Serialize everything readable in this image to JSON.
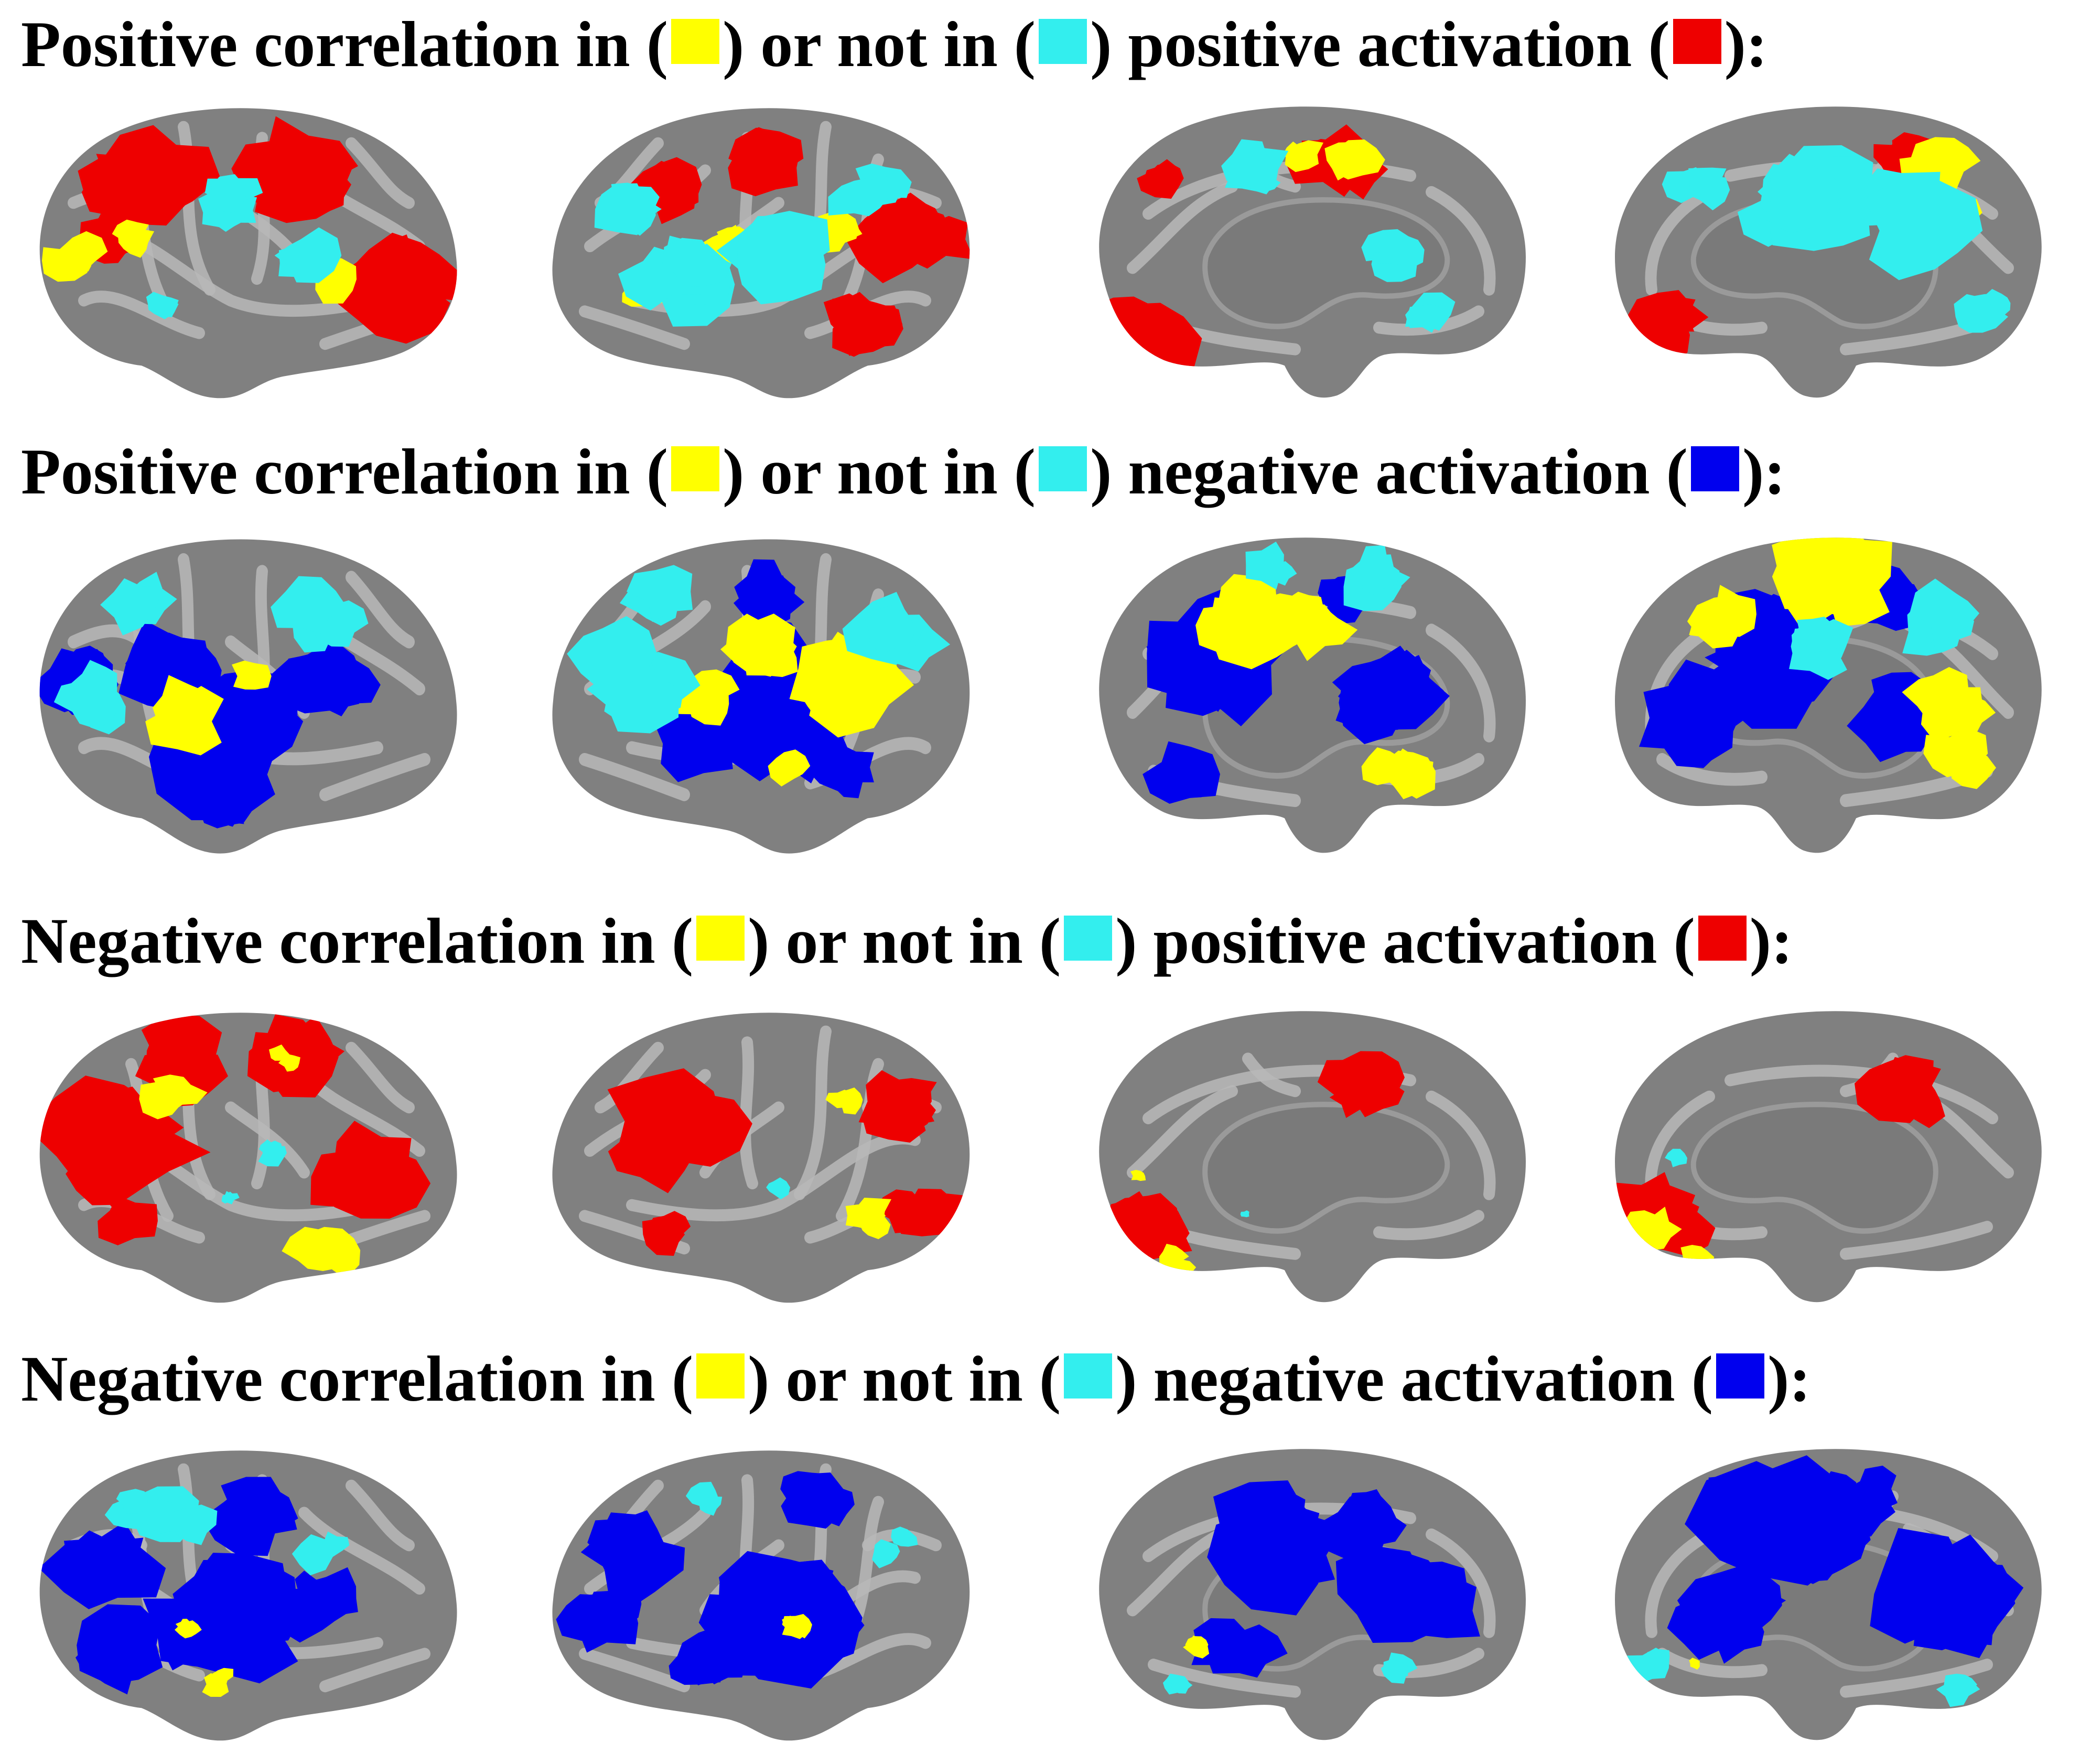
{
  "colors": {
    "yellow": "#ffff00",
    "cyan": "#33eeee",
    "red": "#ee0000",
    "blue": "#0000ee",
    "cortex": "#808080",
    "sulcus": "#b8b8b8",
    "medial_wall": "#7a7a7a"
  },
  "rows": [
    {
      "heading": {
        "part1": "Positive correlation in (",
        "part2": ") or not in (",
        "part3": ") ",
        "activation_label": "positive activation (",
        "end": "):"
      },
      "activation_color": "red"
    },
    {
      "heading": {
        "part1": "Positive correlation in (",
        "part2": ") or not in (",
        "part3": ") ",
        "activation_label": "negative activation (",
        "end": "):"
      },
      "activation_color": "blue"
    },
    {
      "heading": {
        "part1": "Negative correlation in (",
        "part2": ") or not in (",
        "part3": ") ",
        "activation_label": "positive activation (",
        "end": "):"
      },
      "activation_color": "red"
    },
    {
      "heading": {
        "part1": "Negative correlation in (",
        "part2": ") or not in (",
        "part3": ") ",
        "activation_label": "negative activation (",
        "end": "):"
      },
      "activation_color": "blue"
    }
  ],
  "views": [
    "left-lateral",
    "right-lateral",
    "left-medial",
    "right-medial"
  ]
}
